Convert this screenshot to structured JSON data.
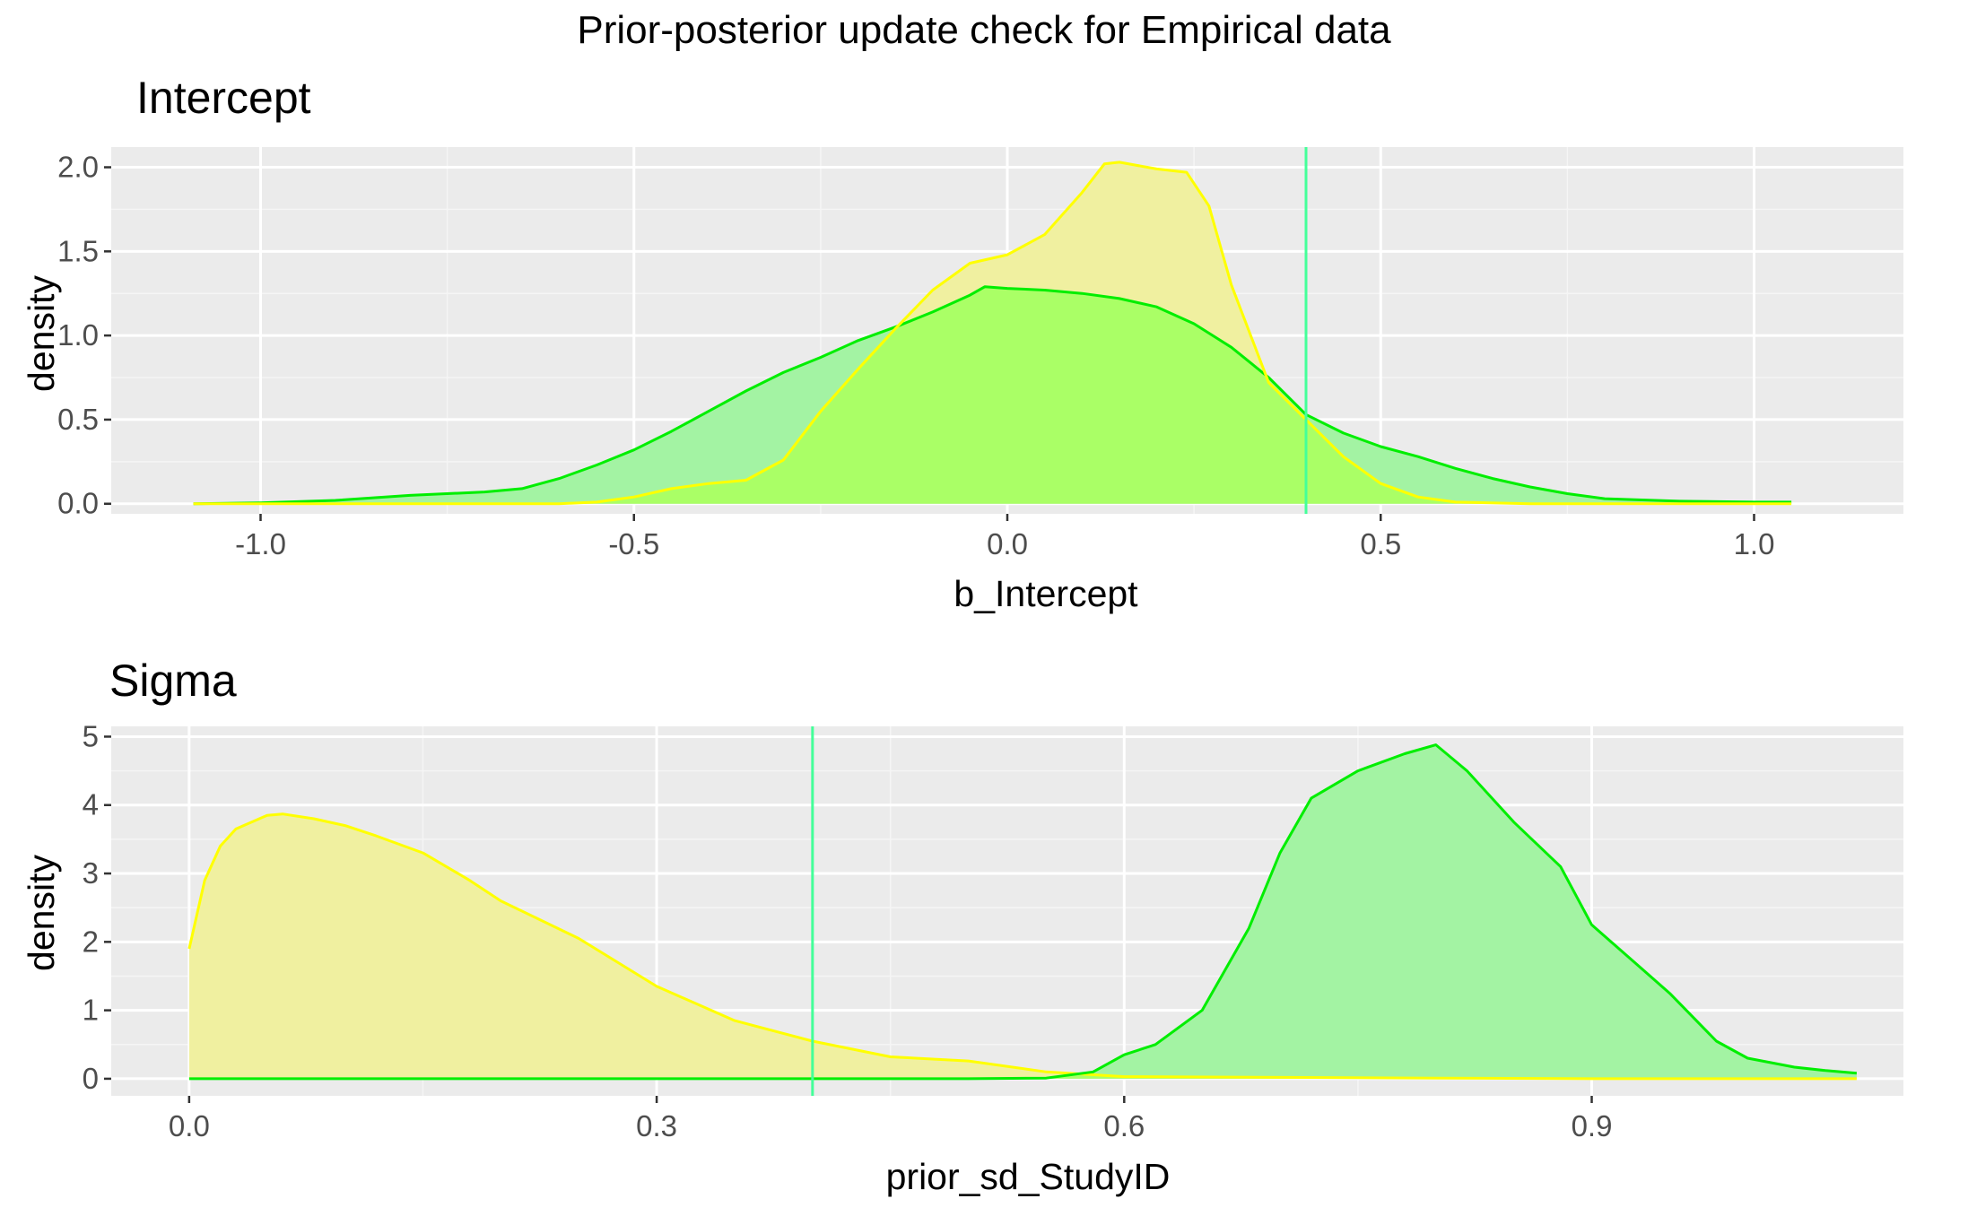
{
  "figure": {
    "title": "Prior-posterior update check for Empirical data"
  },
  "colors": {
    "panel_background": "#EBEBEB",
    "grid_major": "#FFFFFF",
    "grid_minor": "#F5F5F5",
    "prior_line": "#FFFF00",
    "prior_fill": "#F0F0A0",
    "posterior_line": "#00EE00",
    "posterior_fill": "#A3F3A3",
    "overlap_fill": "#AAFF66",
    "reference_line": "#44FF99",
    "tick_label": "#4D4D4D"
  },
  "chart_data": [
    {
      "type": "area",
      "title": "Intercept",
      "xlabel": "b_Intercept",
      "ylabel": "density",
      "xlim": [
        -1.2,
        1.2
      ],
      "ylim": [
        -0.06,
        2.12
      ],
      "xticks": [
        -1.0,
        -0.5,
        0.0,
        0.5,
        1.0
      ],
      "xtick_labels": [
        "-1.0",
        "-0.5",
        "0.0",
        "0.5",
        "1.0"
      ],
      "yticks": [
        0.0,
        0.5,
        1.0,
        1.5,
        2.0
      ],
      "ytick_labels": [
        "0.0",
        "0.5",
        "1.0",
        "1.5",
        "2.0"
      ],
      "grid": true,
      "reference_line_x": 0.4,
      "series": [
        {
          "role": "posterior",
          "x": [
            -1.09,
            -1.0,
            -0.9,
            -0.8,
            -0.7,
            -0.65,
            -0.6,
            -0.55,
            -0.5,
            -0.45,
            -0.4,
            -0.35,
            -0.3,
            -0.25,
            -0.2,
            -0.15,
            -0.1,
            -0.05,
            -0.03,
            0.0,
            0.05,
            0.1,
            0.15,
            0.2,
            0.25,
            0.3,
            0.35,
            0.4,
            0.45,
            0.5,
            0.55,
            0.6,
            0.65,
            0.7,
            0.75,
            0.8,
            0.9,
            1.0,
            1.05
          ],
          "y": [
            0.0,
            0.005,
            0.02,
            0.05,
            0.07,
            0.09,
            0.15,
            0.23,
            0.32,
            0.43,
            0.55,
            0.67,
            0.78,
            0.87,
            0.97,
            1.05,
            1.14,
            1.24,
            1.29,
            1.28,
            1.27,
            1.25,
            1.22,
            1.17,
            1.07,
            0.93,
            0.75,
            0.53,
            0.42,
            0.34,
            0.28,
            0.21,
            0.15,
            0.1,
            0.06,
            0.03,
            0.015,
            0.01,
            0.01
          ]
        },
        {
          "role": "prior",
          "x": [
            -1.09,
            -0.6,
            -0.55,
            -0.5,
            -0.45,
            -0.4,
            -0.35,
            -0.3,
            -0.25,
            -0.2,
            -0.15,
            -0.1,
            -0.05,
            0.0,
            0.05,
            0.1,
            0.13,
            0.15,
            0.2,
            0.24,
            0.27,
            0.3,
            0.35,
            0.4,
            0.45,
            0.5,
            0.55,
            0.6,
            0.7,
            0.8,
            1.05
          ],
          "y": [
            0.0,
            0.0,
            0.01,
            0.04,
            0.09,
            0.12,
            0.14,
            0.26,
            0.55,
            0.8,
            1.04,
            1.27,
            1.43,
            1.48,
            1.6,
            1.85,
            2.02,
            2.03,
            1.99,
            1.97,
            1.77,
            1.3,
            0.72,
            0.5,
            0.28,
            0.12,
            0.04,
            0.01,
            0.0,
            0.0,
            0.0
          ]
        }
      ]
    },
    {
      "type": "area",
      "title": "Sigma",
      "xlabel": "prior_sd_StudyID",
      "ylabel": "density",
      "xlim": [
        -0.05,
        1.1
      ],
      "ylim": [
        -0.25,
        5.15
      ],
      "xticks": [
        0.0,
        0.3,
        0.6,
        0.9
      ],
      "xtick_labels": [
        "0.0",
        "0.3",
        "0.6",
        "0.9"
      ],
      "yticks": [
        0,
        1,
        2,
        3,
        4,
        5
      ],
      "ytick_labels": [
        "0",
        "1",
        "2",
        "3",
        "4",
        "5"
      ],
      "grid": true,
      "reference_line_x": 0.4,
      "series": [
        {
          "role": "prior",
          "x": [
            0.0,
            0.01,
            0.02,
            0.03,
            0.05,
            0.06,
            0.08,
            0.1,
            0.12,
            0.15,
            0.18,
            0.2,
            0.25,
            0.3,
            0.35,
            0.4,
            0.45,
            0.5,
            0.55,
            0.6,
            0.7,
            0.8,
            0.9,
            1.0,
            1.07
          ],
          "y": [
            1.9,
            2.9,
            3.4,
            3.65,
            3.85,
            3.87,
            3.8,
            3.7,
            3.55,
            3.3,
            2.9,
            2.6,
            2.05,
            1.35,
            0.85,
            0.55,
            0.32,
            0.26,
            0.1,
            0.03,
            0.02,
            0.01,
            0.0,
            0.0,
            0.0
          ]
        },
        {
          "role": "posterior",
          "x": [
            0.0,
            0.5,
            0.55,
            0.58,
            0.6,
            0.62,
            0.65,
            0.68,
            0.7,
            0.72,
            0.75,
            0.78,
            0.8,
            0.82,
            0.85,
            0.88,
            0.9,
            0.93,
            0.95,
            0.98,
            1.0,
            1.03,
            1.05,
            1.07
          ],
          "y": [
            0.0,
            0.0,
            0.01,
            0.1,
            0.35,
            0.5,
            1.0,
            2.2,
            3.3,
            4.1,
            4.5,
            4.75,
            4.88,
            4.5,
            3.75,
            3.1,
            2.25,
            1.65,
            1.25,
            0.55,
            0.3,
            0.17,
            0.12,
            0.08
          ]
        }
      ]
    }
  ]
}
